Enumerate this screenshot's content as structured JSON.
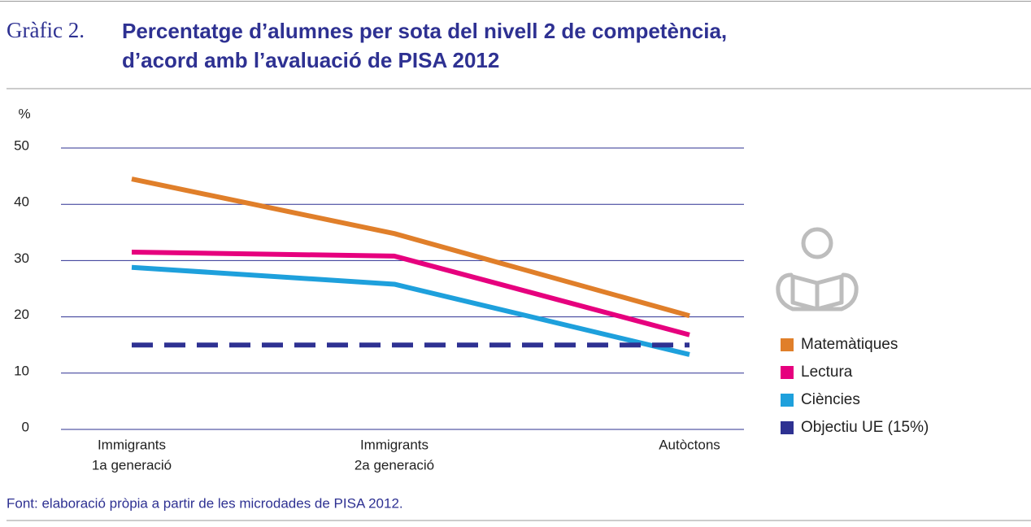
{
  "chart_data": {
    "type": "line",
    "figure_label": "Gràfic 2.",
    "title": [
      "Percentatge d’alumnes per sota del nivell 2 de competència,",
      "d’acord amb l’avaluació de PISA 2012"
    ],
    "ylabel": "%",
    "categories": [
      [
        "Immigrants",
        "1a generació"
      ],
      [
        "Immigrants",
        "2a generació"
      ],
      [
        "Autòctons"
      ]
    ],
    "series": [
      {
        "name": "Matemàtiques",
        "color": "#e07f2a",
        "values": [
          44.5,
          34.8,
          20.2
        ]
      },
      {
        "name": "Lectura",
        "color": "#e6007e",
        "values": [
          31.5,
          30.8,
          16.8
        ]
      },
      {
        "name": "Ciències",
        "color": "#1ea0dc",
        "values": [
          28.8,
          25.8,
          13.3
        ]
      },
      {
        "name": "Objectiu UE (15%)",
        "color": "#2e3192",
        "values": [
          15,
          15,
          15
        ],
        "dashed": true
      }
    ],
    "ylim": [
      0,
      50
    ],
    "yticks": [
      0,
      10,
      20,
      30,
      40,
      50
    ],
    "grid": true,
    "source": "Font: elaboració pròpia a partir de les microdades de PISA 2012."
  }
}
